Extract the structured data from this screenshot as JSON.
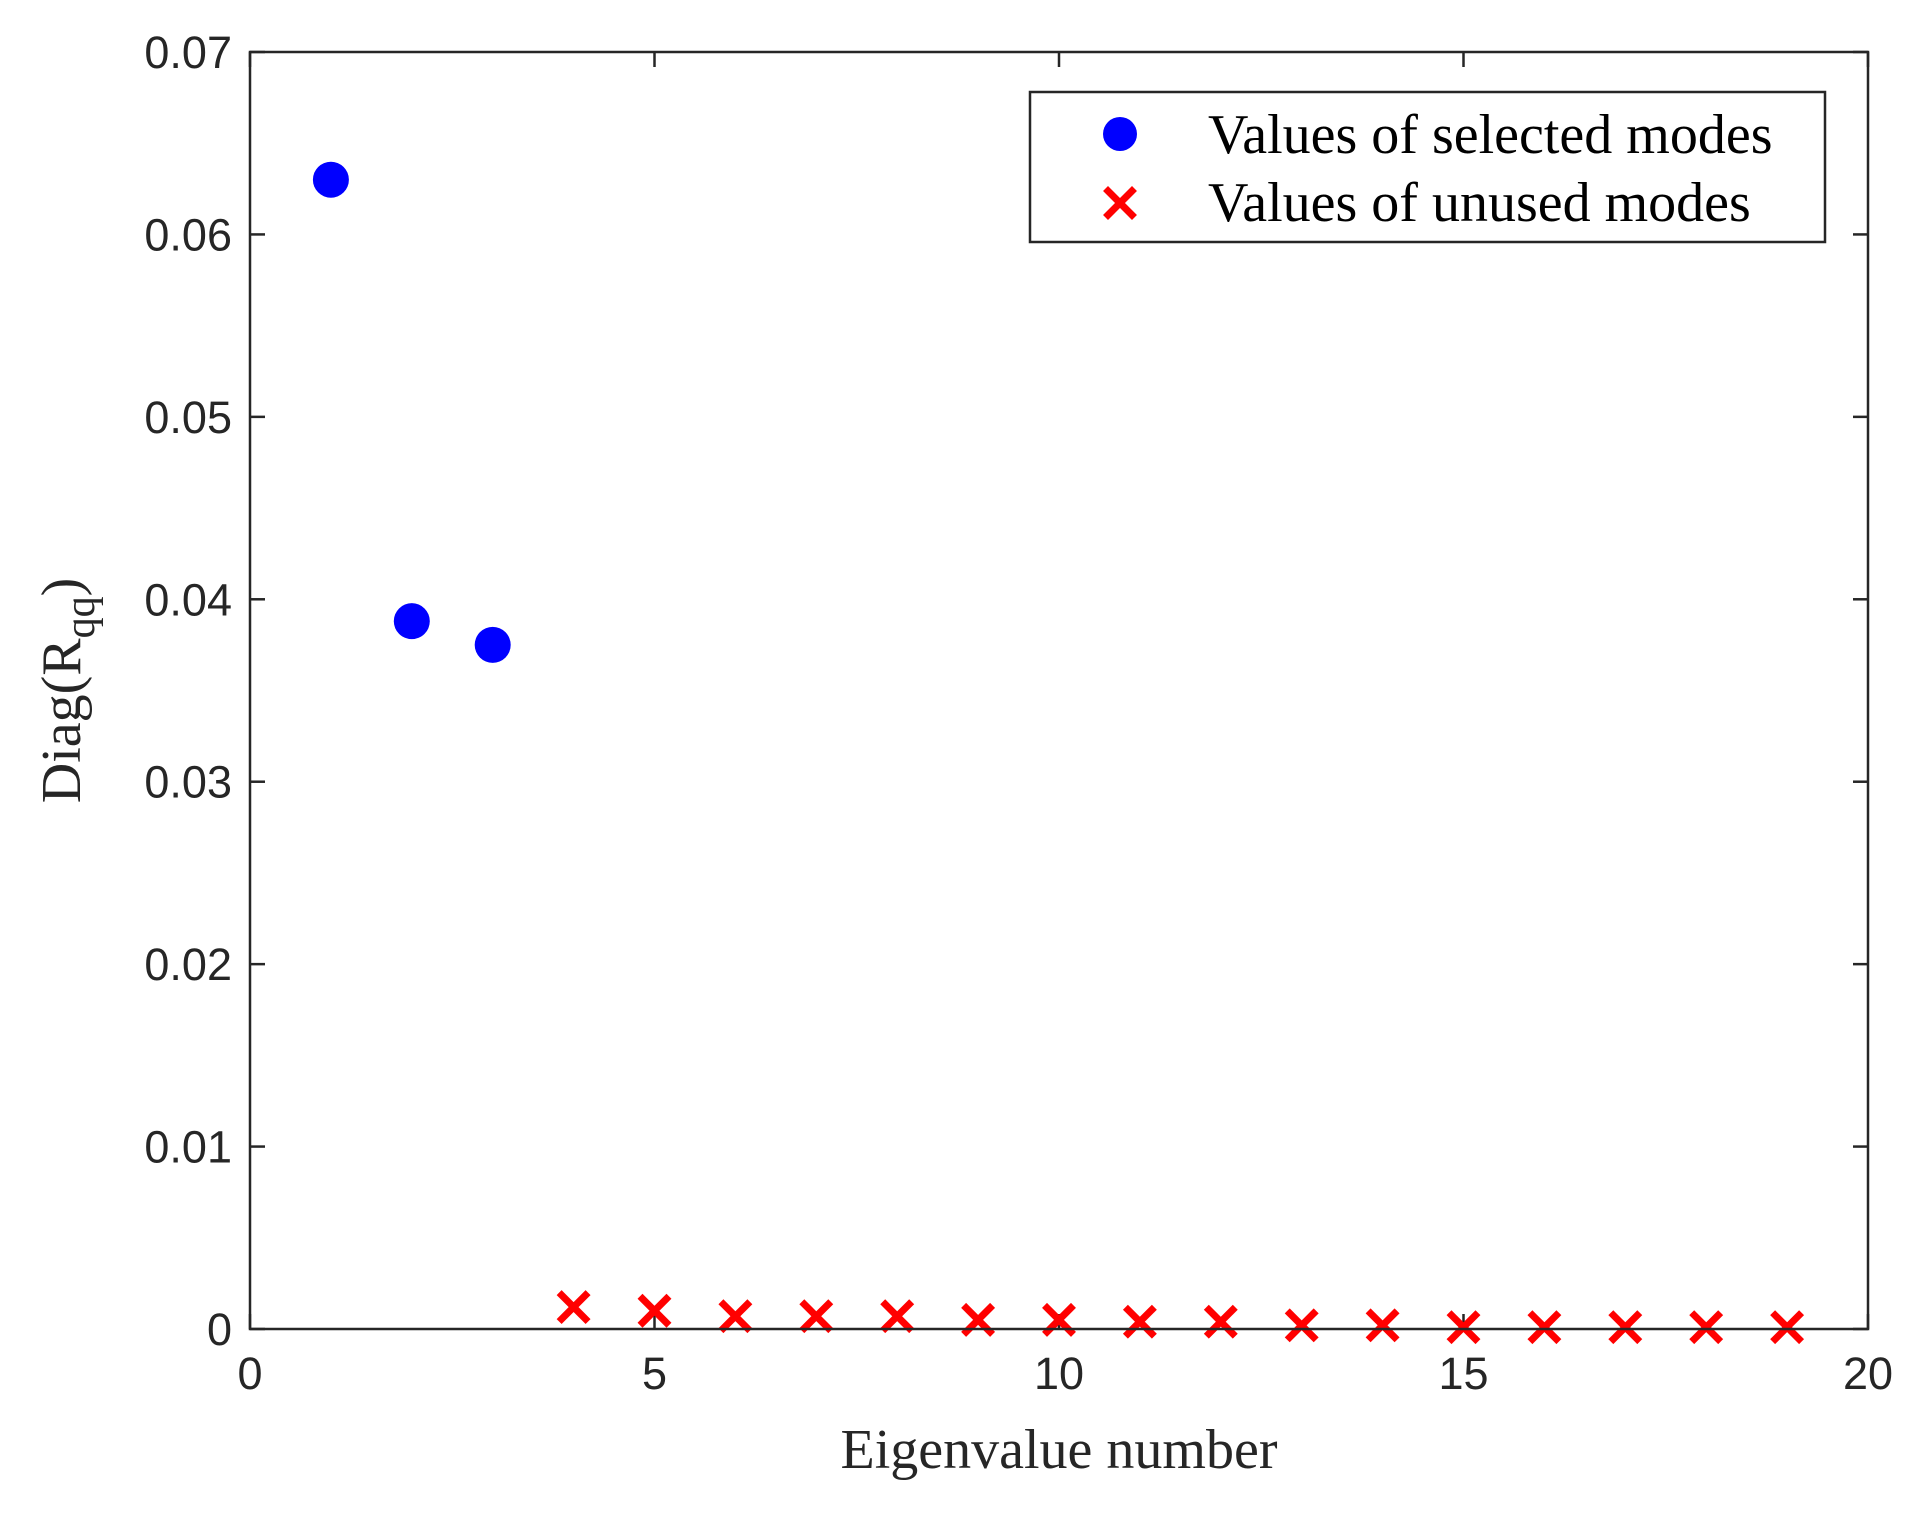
{
  "chart_data": {
    "type": "scatter",
    "title": "",
    "xlabel": "Eigenvalue number",
    "ylabel": {
      "main": "Diag(R",
      "subscript": "qq",
      "close": ")"
    },
    "xlim": [
      0,
      20
    ],
    "ylim": [
      0,
      0.07
    ],
    "xticks": [
      0,
      5,
      10,
      15,
      20
    ],
    "xtick_labels": [
      "0",
      "5",
      "10",
      "15",
      "20"
    ],
    "yticks": [
      0,
      0.01,
      0.02,
      0.03,
      0.04,
      0.05,
      0.06,
      0.07
    ],
    "ytick_labels": [
      "0",
      "0.01",
      "0.02",
      "0.03",
      "0.04",
      "0.05",
      "0.06",
      "0.07"
    ],
    "grid": false,
    "legend_position": "top-right",
    "series": [
      {
        "name": "Values of selected modes",
        "marker": "circle",
        "color": "#0000ff",
        "x": [
          1,
          2,
          3
        ],
        "y": [
          0.063,
          0.0388,
          0.0375
        ]
      },
      {
        "name": "Values of unused modes",
        "marker": "x",
        "color": "#ff0000",
        "x": [
          4,
          5,
          6,
          7,
          8,
          9,
          10,
          11,
          12,
          13,
          14,
          15,
          16,
          17,
          18,
          19
        ],
        "y": [
          0.0012,
          0.001,
          0.0007,
          0.0007,
          0.0007,
          0.0005,
          0.0005,
          0.0004,
          0.0004,
          0.0002,
          0.0002,
          0.0001,
          0.0001,
          0.0001,
          0.0001,
          0.0001
        ]
      }
    ]
  }
}
